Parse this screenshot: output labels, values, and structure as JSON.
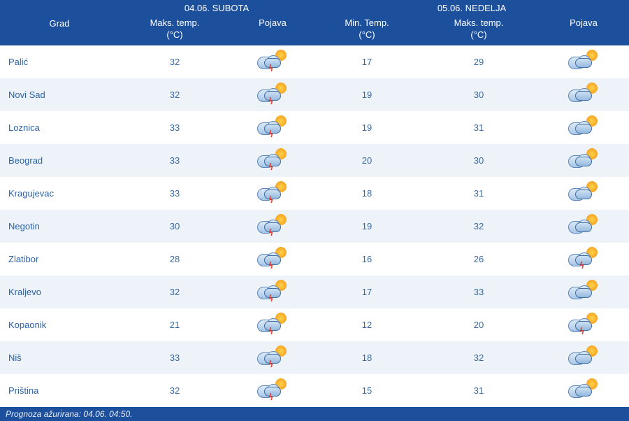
{
  "header": {
    "city_label": "Grad",
    "day1": {
      "title": "04.06. SUBOTA",
      "max_label": "Maks. temp.",
      "max_unit": "(°C)",
      "pojava_label": "Pojava"
    },
    "day2": {
      "title": "05.06. NEDELJA",
      "min_label": "Min. Temp.",
      "min_unit": "(°C)",
      "max_label": "Maks. temp.",
      "max_unit": "(°C)",
      "pojava_label": "Pojava"
    }
  },
  "rows": [
    {
      "city": "Palić",
      "d1_max": 32,
      "d1_icon": "thunder",
      "d2_min": 17,
      "d2_max": 29,
      "d2_icon": "partly"
    },
    {
      "city": "Novi Sad",
      "d1_max": 32,
      "d1_icon": "thunder",
      "d2_min": 19,
      "d2_max": 30,
      "d2_icon": "partly"
    },
    {
      "city": "Loznica",
      "d1_max": 33,
      "d1_icon": "thunder",
      "d2_min": 19,
      "d2_max": 31,
      "d2_icon": "partly"
    },
    {
      "city": "Beograd",
      "d1_max": 33,
      "d1_icon": "thunder",
      "d2_min": 20,
      "d2_max": 30,
      "d2_icon": "partly"
    },
    {
      "city": "Kragujevac",
      "d1_max": 33,
      "d1_icon": "thunder",
      "d2_min": 18,
      "d2_max": 31,
      "d2_icon": "partly"
    },
    {
      "city": "Negotin",
      "d1_max": 30,
      "d1_icon": "thunder",
      "d2_min": 19,
      "d2_max": 32,
      "d2_icon": "partly"
    },
    {
      "city": "Zlatibor",
      "d1_max": 28,
      "d1_icon": "thunder",
      "d2_min": 16,
      "d2_max": 26,
      "d2_icon": "thunder"
    },
    {
      "city": "Kraljevo",
      "d1_max": 32,
      "d1_icon": "thunder",
      "d2_min": 17,
      "d2_max": 33,
      "d2_icon": "partly"
    },
    {
      "city": "Kopaonik",
      "d1_max": 21,
      "d1_icon": "thunder",
      "d2_min": 12,
      "d2_max": 20,
      "d2_icon": "thunder"
    },
    {
      "city": "Niš",
      "d1_max": 33,
      "d1_icon": "thunder",
      "d2_min": 18,
      "d2_max": 32,
      "d2_icon": "partly"
    },
    {
      "city": "Priština",
      "d1_max": 32,
      "d1_icon": "thunder",
      "d2_min": 15,
      "d2_max": 31,
      "d2_icon": "partly"
    }
  ],
  "footer": {
    "updated_label": "Prognoza ažurirana:  04.06. 04:50."
  },
  "style": {
    "type": "table",
    "header_bg": "#1c4f9c",
    "header_fg": "#ffffff",
    "row_bg_even": "#ffffff",
    "row_bg_odd": "#eef3f9",
    "text_color": "#3b6aa0",
    "font_family": "Verdana",
    "font_size": 13,
    "columns": [
      "Grad",
      "Maks. temp. (°C)",
      "Pojava",
      "Min. Temp. (°C)",
      "Maks. temp. (°C)",
      "Pojava"
    ],
    "icon_variants": {
      "thunder": "sun + clouds + rain + red lightning bolt",
      "partly": "sun + clouds (partly cloudy, no precipitation)"
    }
  }
}
